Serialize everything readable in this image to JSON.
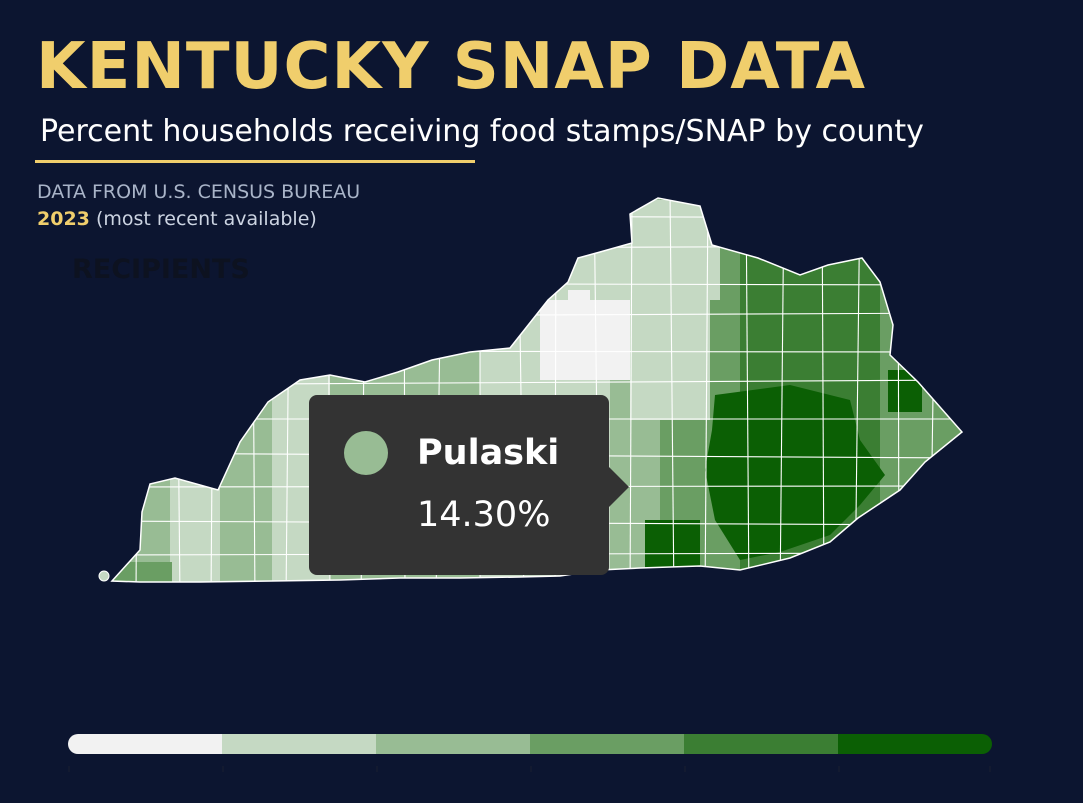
{
  "header": {
    "title": "KENTUCKY SNAP DATA",
    "subtitle": "Percent households receiving food stamps/SNAP by county",
    "source": "DATA FROM U.S. CENSUS BUREAU",
    "year": "2023",
    "year_note": "(most recent available)",
    "faint_label": "RECIPIENTS"
  },
  "colors": {
    "background": "#0c1530",
    "title": "#f0ce6c",
    "county_border": "#ffffff",
    "tooltip_bg": "#333333",
    "bins": [
      "#f2f2f2",
      "#c5d9c3",
      "#98bc94",
      "#6a9e63",
      "#3b7e33",
      "#0b5f04"
    ]
  },
  "tooltip": {
    "county": "Pulaski",
    "value": "14.30%",
    "swatch_color": "#98bc94"
  },
  "legend": {
    "bins": 6,
    "labels": []
  }
}
